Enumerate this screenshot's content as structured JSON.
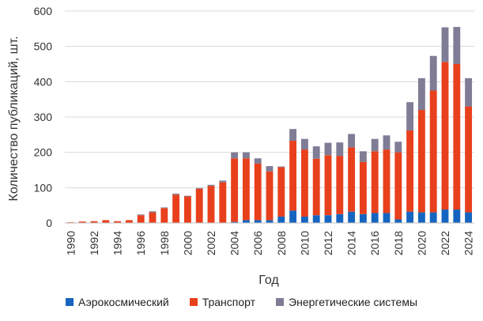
{
  "chart_data": {
    "type": "bar",
    "stacked": true,
    "title": "",
    "xlabel": "Год",
    "ylabel": "Количество публикаций, шт.",
    "ylim": [
      0,
      600
    ],
    "yticks": [
      0,
      100,
      200,
      300,
      400,
      500,
      600
    ],
    "grid": true,
    "legend_position": "bottom",
    "categories": [
      "1990",
      "1991",
      "1992",
      "1993",
      "1994",
      "1995",
      "1996",
      "1997",
      "1998",
      "1999",
      "2000",
      "2001",
      "2002",
      "2003",
      "2004",
      "2005",
      "2006",
      "2007",
      "2008",
      "2009",
      "2010",
      "2011",
      "2012",
      "2013",
      "2014",
      "2015",
      "2016",
      "2017",
      "2018",
      "2019",
      "2020",
      "2021",
      "2022",
      "2023",
      "2024"
    ],
    "x_tick_labels": [
      "1990",
      "",
      "1992",
      "",
      "1994",
      "",
      "1996",
      "",
      "1998",
      "",
      "2000",
      "",
      "2002",
      "",
      "2004",
      "",
      "2006",
      "",
      "2008",
      "",
      "2010",
      "",
      "2012",
      "",
      "2014",
      "",
      "2016",
      "",
      "2018",
      "",
      "2020",
      "",
      "2022",
      "",
      "2024"
    ],
    "series": [
      {
        "name": "Аэрокосмический",
        "color": "#1565c0",
        "values": [
          0,
          0,
          0,
          0,
          0,
          0,
          0,
          0,
          0,
          0,
          0,
          0,
          0,
          0,
          3,
          8,
          8,
          8,
          18,
          35,
          18,
          22,
          22,
          25,
          32,
          25,
          28,
          28,
          10,
          32,
          30,
          30,
          38,
          38,
          30
        ]
      },
      {
        "name": "Транспорт",
        "color": "#e8401c",
        "values": [
          2,
          4,
          5,
          8,
          5,
          8,
          22,
          30,
          42,
          80,
          75,
          97,
          105,
          115,
          180,
          175,
          160,
          138,
          140,
          198,
          190,
          160,
          170,
          165,
          182,
          148,
          175,
          180,
          190,
          230,
          290,
          345,
          418,
          412,
          300
        ]
      },
      {
        "name": "Энергетические системы",
        "color": "#7f7c96",
        "values": [
          0,
          0,
          0,
          0,
          0,
          0,
          2,
          3,
          2,
          3,
          2,
          2,
          3,
          5,
          17,
          17,
          15,
          15,
          2,
          33,
          30,
          35,
          35,
          38,
          38,
          30,
          35,
          40,
          30,
          80,
          90,
          98,
          98,
          105,
          80
        ]
      }
    ]
  }
}
